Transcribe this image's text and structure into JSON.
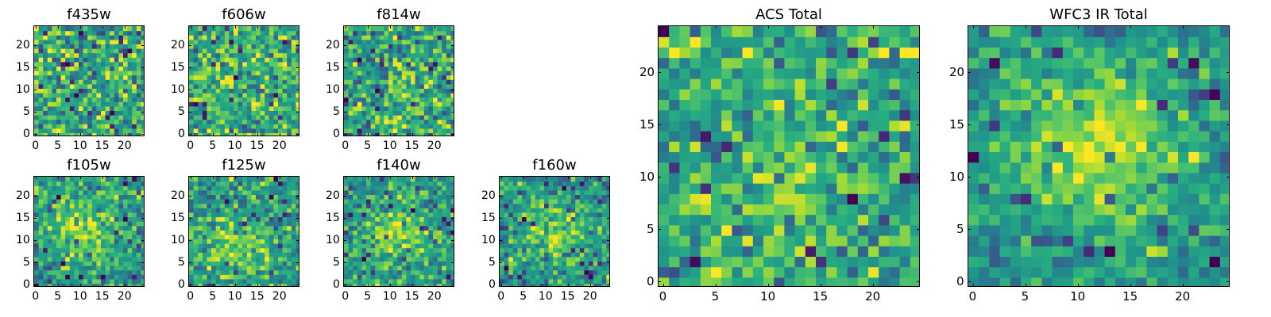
{
  "figure": {
    "colormap": "viridis",
    "colors": {
      "viridis_low": "#440154",
      "viridis_mid": "#21918c",
      "viridis_high": "#fde725",
      "frame": "#000000",
      "background": "#ffffff"
    }
  },
  "chart_data": [
    {
      "type": "heatmap",
      "id": "f435w",
      "title": "f435w",
      "xlim": [
        0,
        24
      ],
      "ylim": [
        0,
        24
      ],
      "xticks": [
        0,
        5,
        10,
        15,
        20
      ],
      "yticks": [
        0,
        5,
        10,
        15,
        20
      ],
      "grid_size": [
        25,
        25
      ],
      "value_range": [
        0,
        1
      ],
      "mean_level": 0.62,
      "noise_level": 0.2,
      "hot_spot": null
    },
    {
      "type": "heatmap",
      "id": "f606w",
      "title": "f606w",
      "xlim": [
        0,
        24
      ],
      "ylim": [
        0,
        24
      ],
      "xticks": [
        0,
        5,
        10,
        15,
        20
      ],
      "yticks": [
        0,
        5,
        10,
        15,
        20
      ],
      "grid_size": [
        25,
        25
      ],
      "value_range": [
        0,
        1
      ],
      "mean_level": 0.64,
      "noise_level": 0.2,
      "hot_spot": null
    },
    {
      "type": "heatmap",
      "id": "f814w",
      "title": "f814w",
      "xlim": [
        0,
        24
      ],
      "ylim": [
        0,
        24
      ],
      "xticks": [
        0,
        5,
        10,
        15,
        20
      ],
      "yticks": [
        0,
        5,
        10,
        15,
        20
      ],
      "grid_size": [
        25,
        25
      ],
      "value_range": [
        0,
        1
      ],
      "mean_level": 0.6,
      "noise_level": 0.2,
      "hot_spot": {
        "x": 14,
        "y": 8,
        "sigma": 3,
        "amplitude": 0.12
      }
    },
    {
      "type": "heatmap",
      "id": "f105w",
      "title": "f105w",
      "xlim": [
        0,
        24
      ],
      "ylim": [
        0,
        24
      ],
      "xticks": [
        0,
        5,
        10,
        15,
        20
      ],
      "yticks": [
        0,
        5,
        10,
        15,
        20
      ],
      "grid_size": [
        25,
        25
      ],
      "value_range": [
        0,
        1
      ],
      "mean_level": 0.55,
      "noise_level": 0.15,
      "hot_spot": {
        "x": 10,
        "y": 13,
        "sigma": 5,
        "amplitude": 0.28
      }
    },
    {
      "type": "heatmap",
      "id": "f125w",
      "title": "f125w",
      "xlim": [
        0,
        24
      ],
      "ylim": [
        0,
        24
      ],
      "xticks": [
        0,
        5,
        10,
        15,
        20
      ],
      "yticks": [
        0,
        5,
        10,
        15,
        20
      ],
      "grid_size": [
        25,
        25
      ],
      "value_range": [
        0,
        1
      ],
      "mean_level": 0.55,
      "noise_level": 0.16,
      "hot_spot": {
        "x": 10,
        "y": 10,
        "sigma": 5,
        "amplitude": 0.25
      }
    },
    {
      "type": "heatmap",
      "id": "f140w",
      "title": "f140w",
      "xlim": [
        0,
        24
      ],
      "ylim": [
        0,
        24
      ],
      "xticks": [
        0,
        5,
        10,
        15,
        20
      ],
      "yticks": [
        0,
        5,
        10,
        15,
        20
      ],
      "grid_size": [
        25,
        25
      ],
      "value_range": [
        0,
        1
      ],
      "mean_level": 0.55,
      "noise_level": 0.16,
      "hot_spot": {
        "x": 12,
        "y": 12,
        "sigma": 4.5,
        "amplitude": 0.28
      }
    },
    {
      "type": "heatmap",
      "id": "f160w",
      "title": "f160w",
      "xlim": [
        0,
        24
      ],
      "ylim": [
        0,
        24
      ],
      "xticks": [
        0,
        5,
        10,
        15,
        20
      ],
      "yticks": [
        0,
        5,
        10,
        15,
        20
      ],
      "grid_size": [
        25,
        25
      ],
      "value_range": [
        0,
        1
      ],
      "mean_level": 0.52,
      "noise_level": 0.15,
      "hot_spot": {
        "x": 12,
        "y": 13,
        "sigma": 4.5,
        "amplitude": 0.35
      }
    },
    {
      "type": "heatmap",
      "id": "acs_total",
      "title": "ACS Total",
      "xlim": [
        0,
        24
      ],
      "ylim": [
        0,
        24
      ],
      "xticks": [
        0,
        5,
        10,
        15,
        20
      ],
      "yticks": [
        0,
        5,
        10,
        15,
        20
      ],
      "grid_size": [
        25,
        25
      ],
      "value_range": [
        0,
        1
      ],
      "mean_level": 0.62,
      "noise_level": 0.17,
      "hot_spot": {
        "x": 13,
        "y": 9,
        "sigma": 3,
        "amplitude": 0.15
      }
    },
    {
      "type": "heatmap",
      "id": "wfc3_ir_total",
      "title": "WFC3 IR Total",
      "xlim": [
        0,
        24
      ],
      "ylim": [
        0,
        24
      ],
      "xticks": [
        0,
        5,
        10,
        15,
        20
      ],
      "yticks": [
        0,
        5,
        10,
        15,
        20
      ],
      "grid_size": [
        25,
        25
      ],
      "value_range": [
        0,
        1
      ],
      "mean_level": 0.52,
      "noise_level": 0.12,
      "hot_spot": {
        "x": 12,
        "y": 13,
        "sigma": 5,
        "amplitude": 0.4
      }
    }
  ]
}
